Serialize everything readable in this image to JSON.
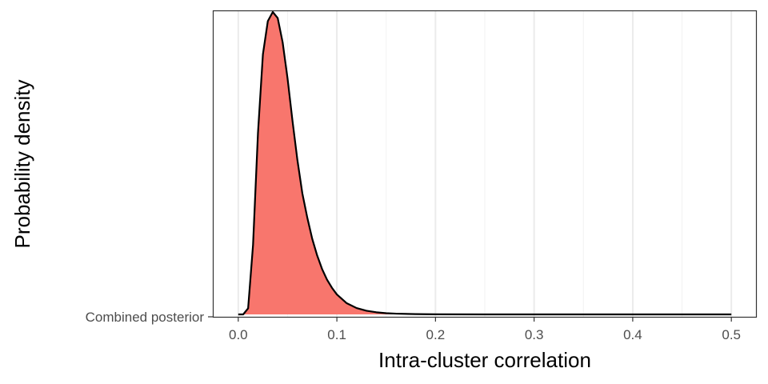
{
  "chart_data": {
    "type": "area",
    "xlabel": "Intra-cluster correlation",
    "ylabel": "Probability density",
    "xlim": [
      -0.025,
      0.525
    ],
    "x_ticks": [
      0.0,
      0.1,
      0.2,
      0.3,
      0.4,
      0.5
    ],
    "x_tick_labels": [
      "0.0",
      "0.1",
      "0.2",
      "0.3",
      "0.4",
      "0.5"
    ],
    "x_minor_ticks": [
      0.05,
      0.15,
      0.25,
      0.35,
      0.45
    ],
    "y_category": "Combined posterior",
    "grid": true,
    "series": [
      {
        "name": "Combined posterior",
        "color": "#F8766D",
        "x": [
          0.0,
          0.005,
          0.01,
          0.015,
          0.02,
          0.025,
          0.03,
          0.035,
          0.04,
          0.045,
          0.05,
          0.055,
          0.06,
          0.065,
          0.07,
          0.075,
          0.08,
          0.085,
          0.09,
          0.095,
          0.1,
          0.11,
          0.12,
          0.13,
          0.14,
          0.15,
          0.16,
          0.18,
          0.2,
          0.25,
          0.3,
          0.35,
          0.4,
          0.45,
          0.5
        ],
        "y": [
          0,
          0,
          0.02,
          0.23,
          0.6,
          0.86,
          0.97,
          1.0,
          0.98,
          0.9,
          0.78,
          0.64,
          0.51,
          0.4,
          0.32,
          0.25,
          0.195,
          0.15,
          0.115,
          0.088,
          0.066,
          0.037,
          0.021,
          0.012,
          0.007,
          0.004,
          0.0025,
          0.001,
          0.0004,
          0,
          0,
          0,
          0,
          0,
          0
        ]
      }
    ]
  }
}
